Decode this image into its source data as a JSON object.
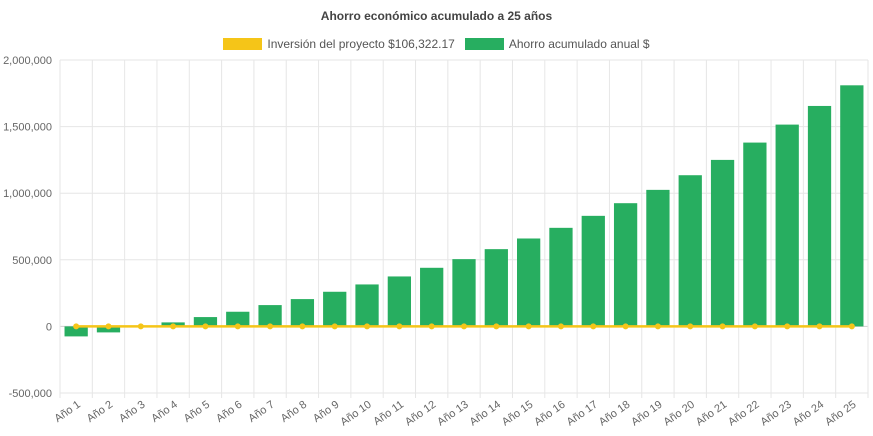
{
  "chart_data": {
    "type": "bar",
    "title": "Ahorro económico acumulado a 25 años",
    "categories": [
      "Año 1",
      "Año 2",
      "Año 3",
      "Año 4",
      "Año 5",
      "Año 6",
      "Año 7",
      "Año 8",
      "Año 9",
      "Año 10",
      "Año 11",
      "Año 12",
      "Año 13",
      "Año 14",
      "Año 15",
      "Año 16",
      "Año 17",
      "Año 18",
      "Año 19",
      "Año 20",
      "Año 21",
      "Año 22",
      "Año 23",
      "Año 24",
      "Año 25"
    ],
    "series": [
      {
        "name": "Inversión del proyecto $106,322.17",
        "type": "line",
        "color": "#f5c518",
        "values": [
          0,
          0,
          0,
          0,
          0,
          0,
          0,
          0,
          0,
          0,
          0,
          0,
          0,
          0,
          0,
          0,
          0,
          0,
          0,
          0,
          0,
          0,
          0,
          0,
          0
        ]
      },
      {
        "name": "Ahorro acumulado anual $",
        "type": "bar",
        "color": "#27ae60",
        "values": [
          -75000,
          -45000,
          -5000,
          30000,
          70000,
          110000,
          160000,
          205000,
          260000,
          315000,
          375000,
          440000,
          505000,
          580000,
          660000,
          740000,
          830000,
          925000,
          1025000,
          1135000,
          1250000,
          1380000,
          1515000,
          1655000,
          1810000
        ]
      }
    ],
    "yticks": [
      "2,000,000",
      "1,500,000",
      "1,000,000",
      "500,000",
      "0",
      "-500,000"
    ],
    "ylim": [
      -500000,
      2000000
    ],
    "grid": true,
    "legend_position": "top"
  }
}
